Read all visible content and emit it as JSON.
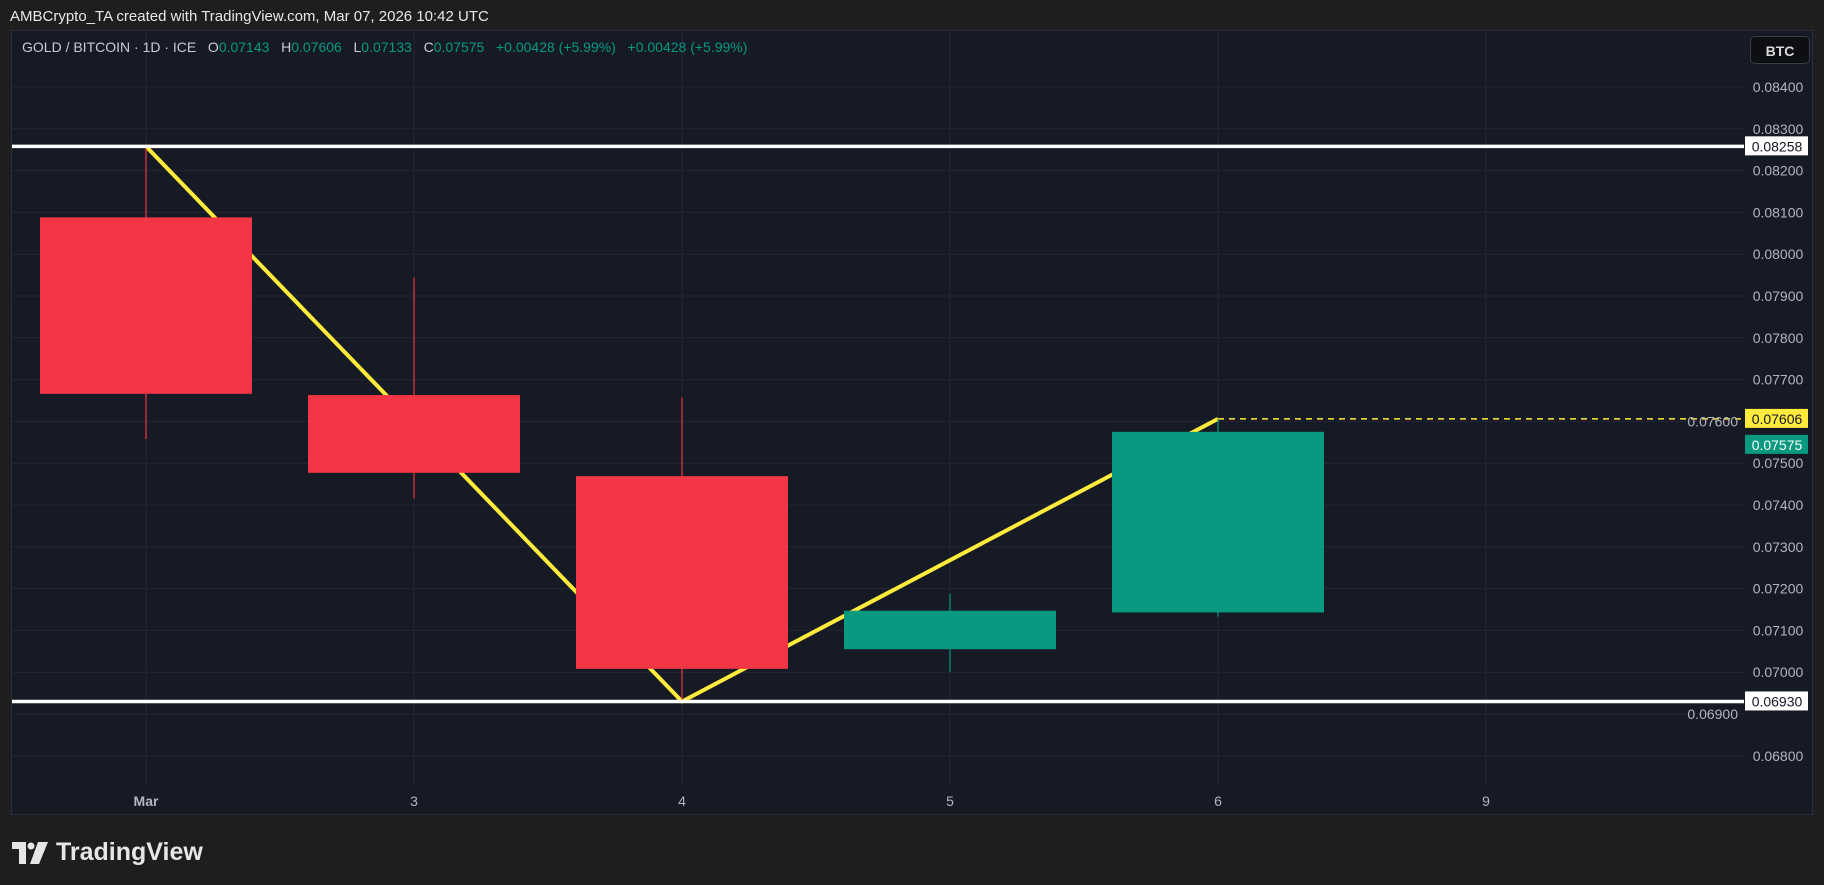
{
  "attribution": "AMBCrypto_TA created with TradingView.com, Mar 07, 2026 10:42 UTC",
  "legend": {
    "symbol": "GOLD / BITCOIN · 1D · ICE",
    "open_label": "O",
    "open": "0.07143",
    "high_label": "H",
    "high": "0.07606",
    "low_label": "L",
    "low": "0.07133",
    "close_label": "C",
    "close": "0.07575",
    "change1": "+0.00428 (+5.99%)",
    "change2": "+0.00428 (+5.99%)"
  },
  "currency_button": "BTC",
  "logo_text": "TradingView",
  "colors": {
    "up": "#089981",
    "down": "#f23645",
    "trendline": "#ffeb3b",
    "level_line": "#ffffff",
    "background": "#161a25",
    "grid": "#232734"
  },
  "chart_data": {
    "type": "candlestick",
    "x_tick_labels": [
      "Mar",
      "3",
      "4",
      "5",
      "6",
      "9"
    ],
    "candles": [
      {
        "label": "Mar",
        "open": 0.08088,
        "high": 0.08258,
        "low": 0.07558,
        "close": 0.07666
      },
      {
        "label": "3",
        "open": 0.07663,
        "high": 0.07944,
        "low": 0.07416,
        "close": 0.07477
      },
      {
        "label": "4",
        "open": 0.07469,
        "high": 0.07657,
        "low": 0.0693,
        "close": 0.07008
      },
      {
        "label": "5",
        "open": 0.07055,
        "high": 0.07188,
        "low": 0.07001,
        "close": 0.07147
      },
      {
        "label": "6",
        "open": 0.07143,
        "high": 0.07606,
        "low": 0.07133,
        "close": 0.07575
      }
    ],
    "y_ticks": [
      "0.06800",
      "0.06900",
      "0.07000",
      "0.07100",
      "0.07200",
      "0.07300",
      "0.07400",
      "0.07500",
      "0.07600",
      "0.07700",
      "0.07800",
      "0.07900",
      "0.08000",
      "0.08100",
      "0.08200",
      "0.08300",
      "0.08400"
    ],
    "ylim": [
      0.0665,
      0.0855
    ],
    "grid": true,
    "horizontal_levels": [
      {
        "value": 0.08258,
        "label": "0.08258"
      },
      {
        "value": 0.0693,
        "label": "0.06930"
      }
    ],
    "trendline": [
      {
        "x": "Mar",
        "y": 0.08258
      },
      {
        "x": "4",
        "y": 0.0693
      },
      {
        "x": "6",
        "y": 0.07606
      }
    ],
    "high_marker": {
      "value": 0.07606,
      "label": "0.07606"
    },
    "last_price": {
      "value": 0.07575,
      "label": "0.07575"
    }
  }
}
